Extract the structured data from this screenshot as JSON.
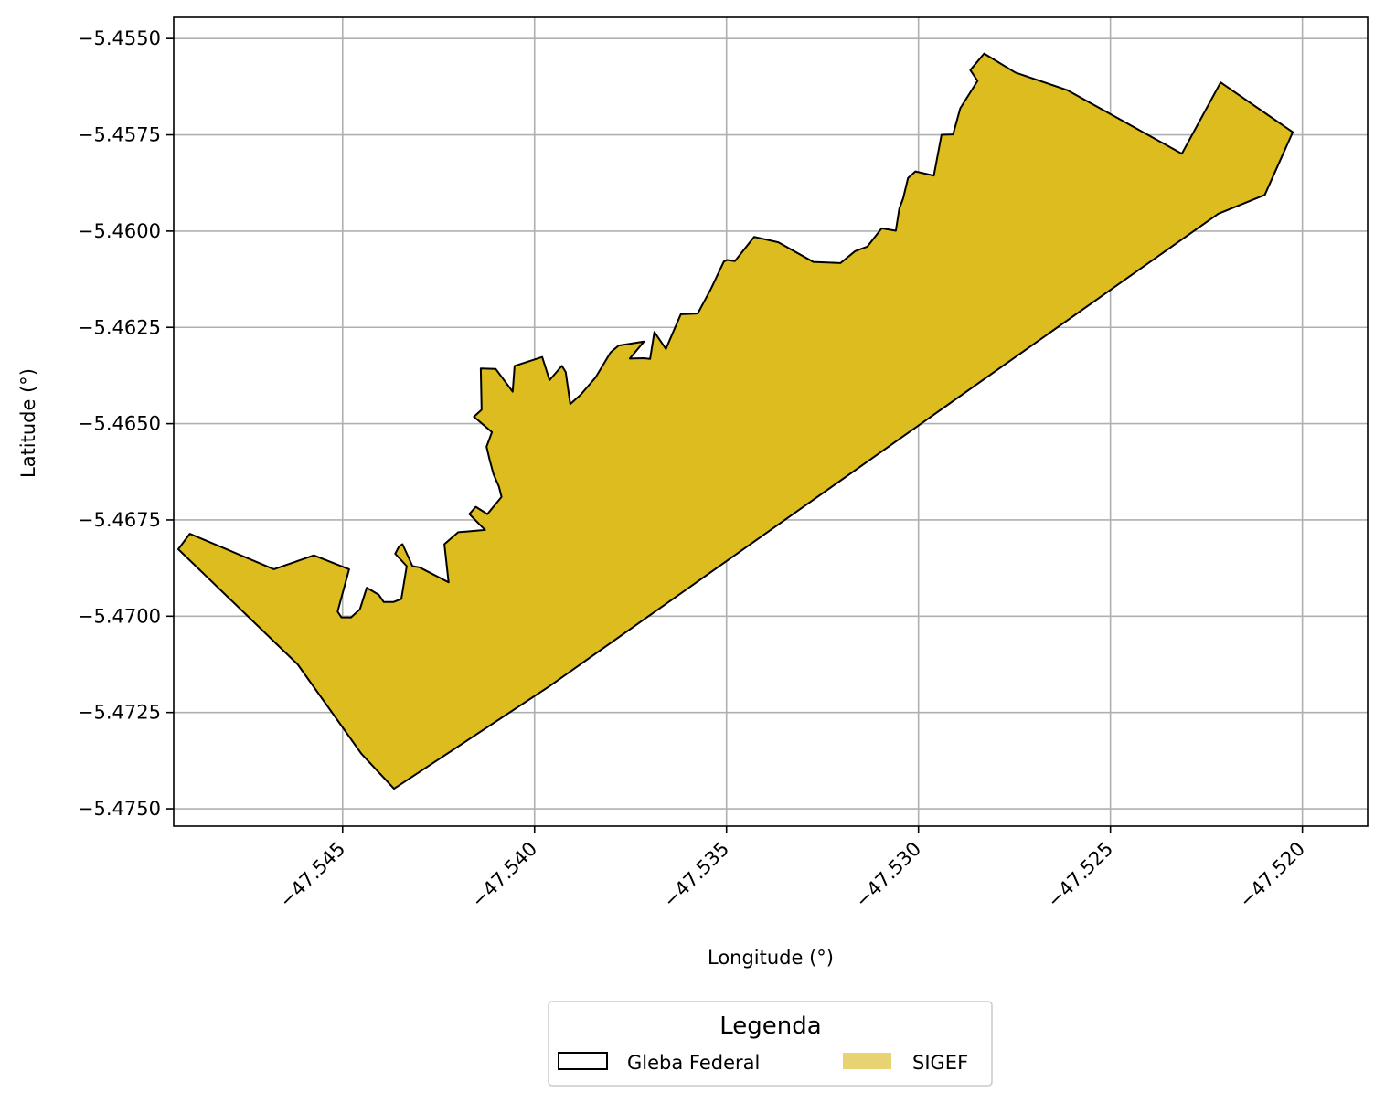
{
  "chart_data": {
    "type": "map",
    "xlabel": "Longitude (°)",
    "ylabel": "Latitude (°)",
    "xlim": [
      -47.5494,
      -47.5183
    ],
    "ylim": [
      -5.47545,
      -5.45445
    ],
    "grid": true,
    "xticks": [
      -47.545,
      -47.54,
      -47.535,
      -47.53,
      -47.525,
      -47.52
    ],
    "xtick_labels": [
      "−47.545",
      "−47.540",
      "−47.535",
      "−47.530",
      "−47.525",
      "−47.520"
    ],
    "yticks": [
      -5.455,
      -5.4575,
      -5.46,
      -5.4625,
      -5.465,
      -5.4675,
      -5.47,
      -5.4725,
      -5.475
    ],
    "ytick_labels": [
      "−5.4550",
      "−5.4575",
      "−5.4600",
      "−5.4625",
      "−5.4650",
      "−5.4675",
      "−5.4700",
      "−5.4725",
      "−5.4750"
    ],
    "legend": {
      "title": "Legenda",
      "placement": "below",
      "entries": [
        {
          "label": "Gleba Federal",
          "style": "outline",
          "color": "#000000"
        },
        {
          "label": "SIGEF",
          "style": "fill",
          "color": "#e8d374"
        }
      ]
    },
    "colors": {
      "polygon_fill": "#ddbc1f",
      "polygon_edge": "#000000"
    },
    "polygon": [
      [
        -47.54928,
        -5.46826
      ],
      [
        -47.54898,
        -5.46786
      ],
      [
        -47.54679,
        -5.46878
      ],
      [
        -47.54575,
        -5.46842
      ],
      [
        -47.54483,
        -5.46878
      ],
      [
        -47.54513,
        -5.46988
      ],
      [
        -47.54503,
        -5.47003
      ],
      [
        -47.54478,
        -5.47003
      ],
      [
        -47.54455,
        -5.46982
      ],
      [
        -47.54437,
        -5.46926
      ],
      [
        -47.54406,
        -5.46944
      ],
      [
        -47.54393,
        -5.46963
      ],
      [
        -47.54367,
        -5.46963
      ],
      [
        -47.54347,
        -5.46955
      ],
      [
        -47.54333,
        -5.4687
      ],
      [
        -47.54363,
        -5.46838
      ],
      [
        -47.54353,
        -5.46819
      ],
      [
        -47.54344,
        -5.46813
      ],
      [
        -47.54318,
        -5.4687
      ],
      [
        -47.543,
        -5.46873
      ],
      [
        -47.54224,
        -5.46912
      ],
      [
        -47.54235,
        -5.46813
      ],
      [
        -47.54199,
        -5.46782
      ],
      [
        -47.54129,
        -5.46776
      ],
      [
        -47.5417,
        -5.46735
      ],
      [
        -47.54153,
        -5.46716
      ],
      [
        -47.54123,
        -5.46735
      ],
      [
        -47.54086,
        -5.4669
      ],
      [
        -47.54093,
        -5.46663
      ],
      [
        -47.54107,
        -5.46631
      ],
      [
        -47.54117,
        -5.46594
      ],
      [
        -47.54125,
        -5.4656
      ],
      [
        -47.54111,
        -5.46522
      ],
      [
        -47.54158,
        -5.46482
      ],
      [
        -47.54138,
        -5.46464
      ],
      [
        -47.5414,
        -5.46357
      ],
      [
        -47.54101,
        -5.46358
      ],
      [
        -47.54057,
        -5.46417
      ],
      [
        -47.54052,
        -5.4635
      ],
      [
        -47.5398,
        -5.46327
      ],
      [
        -47.53961,
        -5.46387
      ],
      [
        -47.53929,
        -5.4635
      ],
      [
        -47.53919,
        -5.46366
      ],
      [
        -47.53907,
        -5.46449
      ],
      [
        -47.5388,
        -5.46425
      ],
      [
        -47.53841,
        -5.4638
      ],
      [
        -47.53802,
        -5.46315
      ],
      [
        -47.53781,
        -5.46297
      ],
      [
        -47.53715,
        -5.46287
      ],
      [
        -47.53752,
        -5.46331
      ],
      [
        -47.53716,
        -5.4633
      ],
      [
        -47.53699,
        -5.46332
      ],
      [
        -47.53688,
        -5.46262
      ],
      [
        -47.53658,
        -5.46306
      ],
      [
        -47.53619,
        -5.46216
      ],
      [
        -47.53575,
        -5.46214
      ],
      [
        -47.5354,
        -5.46149
      ],
      [
        -47.53507,
        -5.46079
      ],
      [
        -47.53498,
        -5.46075
      ],
      [
        -47.53478,
        -5.46078
      ],
      [
        -47.53428,
        -5.46015
      ],
      [
        -47.53365,
        -5.46029
      ],
      [
        -47.53274,
        -5.4608
      ],
      [
        -47.53203,
        -5.46083
      ],
      [
        -47.53165,
        -5.46052
      ],
      [
        -47.53133,
        -5.4604
      ],
      [
        -47.53096,
        -5.45993
      ],
      [
        -47.53059,
        -5.45999
      ],
      [
        -47.5305,
        -5.45942
      ],
      [
        -47.5304,
        -5.45915
      ],
      [
        -47.53027,
        -5.45862
      ],
      [
        -47.53008,
        -5.45845
      ],
      [
        -47.5296,
        -5.45856
      ],
      [
        -47.5294,
        -5.4575
      ],
      [
        -47.5291,
        -5.45749
      ],
      [
        -47.52891,
        -5.45681
      ],
      [
        -47.52846,
        -5.4561
      ],
      [
        -47.52865,
        -5.45582
      ],
      [
        -47.52829,
        -5.45539
      ],
      [
        -47.52748,
        -5.45588
      ],
      [
        -47.52612,
        -5.45634
      ],
      [
        -47.52314,
        -5.45799
      ],
      [
        -47.52213,
        -5.45614
      ],
      [
        -47.52025,
        -5.45743
      ],
      [
        -47.52098,
        -5.45906
      ],
      [
        -47.52219,
        -5.45955
      ],
      [
        -47.53963,
        -5.47183
      ],
      [
        -47.54366,
        -5.47448
      ],
      [
        -47.54451,
        -5.47357
      ],
      [
        -47.54617,
        -5.47125
      ]
    ]
  }
}
